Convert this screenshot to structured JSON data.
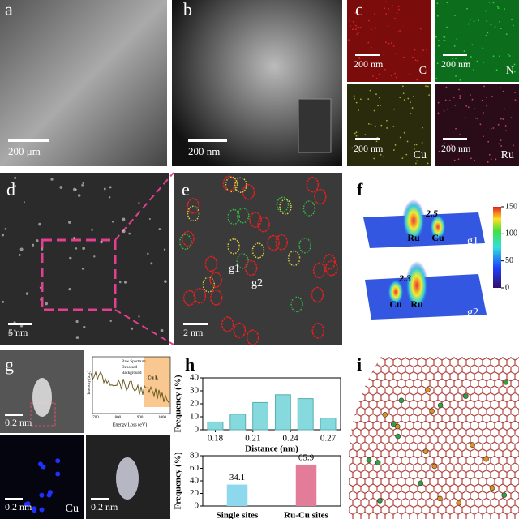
{
  "panels": {
    "a": {
      "label": "a",
      "scale": "200 μm"
    },
    "b": {
      "label": "b",
      "scale": "200 nm"
    },
    "c": {
      "label": "c",
      "maps": [
        {
          "scale": "200 nm",
          "element": "C"
        },
        {
          "scale": "200 nm",
          "element": "N"
        },
        {
          "scale": "200 nm",
          "element": "Cu"
        },
        {
          "scale": "200 nm",
          "element": "Ru"
        }
      ]
    },
    "d": {
      "label": "d",
      "scale": "5 nm"
    },
    "e": {
      "label": "e",
      "scale": "2 nm",
      "sites": [
        "g1",
        "g2"
      ]
    },
    "f": {
      "label": "f",
      "peaks": [
        {
          "distance": "2.5",
          "left": "Ru",
          "right": "Cu",
          "name": "g1"
        },
        {
          "distance": "2.3",
          "left": "Cu",
          "right": "Ru",
          "name": "g2"
        }
      ],
      "colorbar_ticks": [
        0,
        50,
        100,
        150
      ]
    },
    "g": {
      "label": "g",
      "scales": [
        "0.2 nm",
        "0.2 nm",
        "0.2 nm"
      ],
      "element": "Cu",
      "spectrum": {
        "legend": [
          "Raw Spectrum",
          "Denoised",
          "Background"
        ],
        "edge": "Cu L",
        "ylabel": "Intensity (a.u.)",
        "xlabel": "Energy Loss (eV)",
        "xticks": [
          700,
          800,
          900,
          1000
        ]
      }
    },
    "h": {
      "label": "h"
    },
    "i": {
      "label": "i"
    }
  },
  "chart_data": [
    {
      "type": "bar",
      "x": [
        0.18,
        0.198,
        0.216,
        0.234,
        0.252,
        0.27
      ],
      "values": [
        6,
        12,
        21,
        27,
        24,
        9
      ],
      "ylabel": "Frequency (%)",
      "xlabel": "Distance (nm)",
      "xlim": [
        0.17,
        0.28
      ],
      "xticks": [
        0.18,
        0.21,
        0.24,
        0.27
      ],
      "ylim": [
        0,
        40
      ],
      "yticks": [
        0,
        10,
        20,
        30,
        40
      ],
      "color": "#86d9dc"
    },
    {
      "type": "bar",
      "categories": [
        "Single sites",
        "Ru-Cu sites"
      ],
      "values": [
        34.1,
        65.9
      ],
      "ylabel": "Frequency (%)",
      "ylim": [
        0,
        80
      ],
      "yticks": [
        0,
        20,
        40,
        60,
        80
      ],
      "colors": [
        "#8ed8ee",
        "#e27c98"
      ]
    }
  ]
}
